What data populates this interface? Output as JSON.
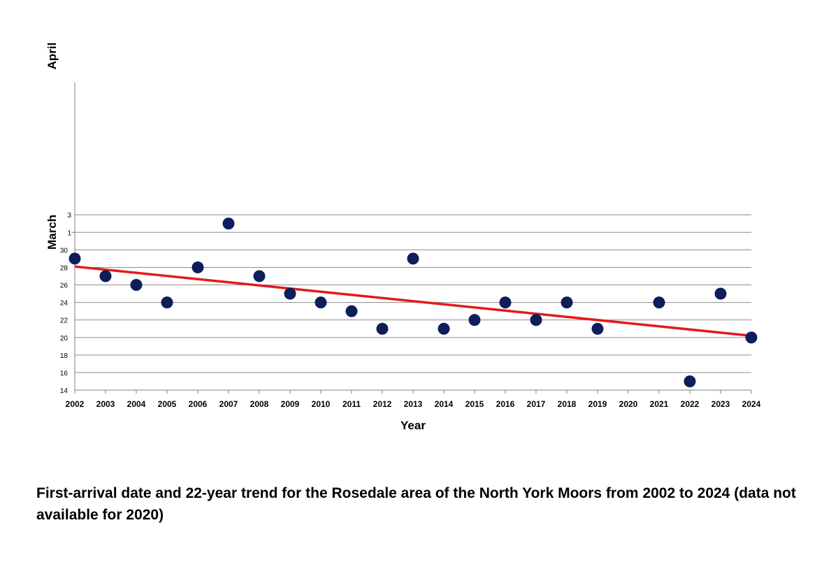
{
  "chart_data": {
    "type": "scatter",
    "xlabel": "Year",
    "y_group_labels": {
      "march": "March",
      "april": "April"
    },
    "x_ticks": [
      2002,
      2003,
      2004,
      2005,
      2006,
      2007,
      2008,
      2009,
      2010,
      2011,
      2012,
      2013,
      2014,
      2015,
      2016,
      2017,
      2018,
      2019,
      2020,
      2021,
      2022,
      2023,
      2024
    ],
    "march_ticks": [
      14,
      16,
      18,
      20,
      22,
      24,
      26,
      28,
      30
    ],
    "april_ticks": [
      1,
      3
    ],
    "points": [
      {
        "year": 2002,
        "month": "March",
        "day": 29
      },
      {
        "year": 2003,
        "month": "March",
        "day": 27
      },
      {
        "year": 2004,
        "month": "March",
        "day": 26
      },
      {
        "year": 2005,
        "month": "March",
        "day": 24
      },
      {
        "year": 2006,
        "month": "March",
        "day": 28
      },
      {
        "year": 2007,
        "month": "April",
        "day": 2
      },
      {
        "year": 2008,
        "month": "March",
        "day": 27
      },
      {
        "year": 2009,
        "month": "March",
        "day": 25
      },
      {
        "year": 2010,
        "month": "March",
        "day": 24
      },
      {
        "year": 2011,
        "month": "March",
        "day": 23
      },
      {
        "year": 2012,
        "month": "March",
        "day": 21
      },
      {
        "year": 2013,
        "month": "March",
        "day": 29
      },
      {
        "year": 2014,
        "month": "March",
        "day": 21
      },
      {
        "year": 2015,
        "month": "March",
        "day": 22
      },
      {
        "year": 2016,
        "month": "March",
        "day": 24
      },
      {
        "year": 2017,
        "month": "March",
        "day": 22
      },
      {
        "year": 2018,
        "month": "March",
        "day": 24
      },
      {
        "year": 2019,
        "month": "March",
        "day": 21
      },
      {
        "year": 2021,
        "month": "March",
        "day": 24
      },
      {
        "year": 2022,
        "month": "March",
        "day": 15
      },
      {
        "year": 2023,
        "month": "March",
        "day": 25
      },
      {
        "year": 2024,
        "month": "March",
        "day": 20
      }
    ],
    "trend": [
      {
        "year": 2002,
        "month": "March",
        "day": 28.1
      },
      {
        "year": 2024,
        "month": "March",
        "day": 20.2
      }
    ],
    "grid": true,
    "legend": "none",
    "colors": {
      "point": "#0d1e5a",
      "trend": "#e31b1b",
      "grid": "#8c8c8c"
    }
  },
  "caption": "First-arrival date and 22-year trend for the Rosedale area of the North York Moors from 2002 to 2024 (data not available for 2020)"
}
